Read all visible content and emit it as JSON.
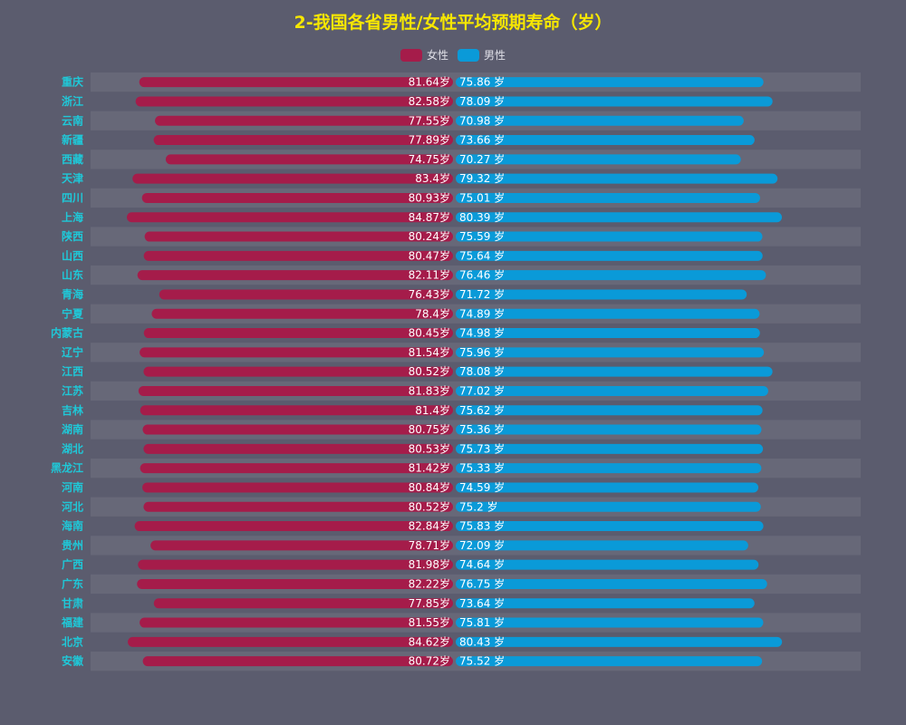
{
  "colors": {
    "background": "#5b5c6e",
    "title": "#f7e700",
    "category_label": "#1fc8d8",
    "female": "#a51c4a",
    "male": "#0a9ad8",
    "row_band": "#676878"
  },
  "chart_data": {
    "type": "bar",
    "orientation": "horizontal-butterfly",
    "title": "2-我国各省男性/女性平均预期寿命（岁）",
    "legend_position": "top-center",
    "grid": false,
    "categories": [
      "重庆",
      "浙江",
      "云南",
      "新疆",
      "西藏",
      "天津",
      "四川",
      "上海",
      "陕西",
      "山西",
      "山东",
      "青海",
      "宁夏",
      "内蒙古",
      "辽宁",
      "江西",
      "江苏",
      "吉林",
      "湖南",
      "湖北",
      "黑龙江",
      "河南",
      "河北",
      "海南",
      "贵州",
      "广西",
      "广东",
      "甘肃",
      "福建",
      "北京",
      "安徽"
    ],
    "series": [
      {
        "name": "女性",
        "label_suffix": "岁",
        "values": [
          81.64,
          82.58,
          77.55,
          77.89,
          74.75,
          83.4,
          80.93,
          84.87,
          80.24,
          80.47,
          82.11,
          76.43,
          78.4,
          80.45,
          81.54,
          80.52,
          81.83,
          81.4,
          80.75,
          80.53,
          81.42,
          80.84,
          80.52,
          82.84,
          78.71,
          81.98,
          82.22,
          77.85,
          81.55,
          84.62,
          80.72
        ]
      },
      {
        "name": "男性",
        "label_suffix": " 岁",
        "values": [
          75.86,
          78.09,
          70.98,
          73.66,
          70.27,
          79.32,
          75.01,
          80.39,
          75.59,
          75.64,
          76.46,
          71.72,
          74.89,
          74.98,
          75.96,
          78.08,
          77.02,
          75.62,
          75.36,
          75.73,
          75.33,
          74.59,
          75.2,
          75.83,
          72.09,
          74.64,
          76.75,
          73.64,
          75.81,
          80.43,
          75.52
        ]
      }
    ]
  }
}
